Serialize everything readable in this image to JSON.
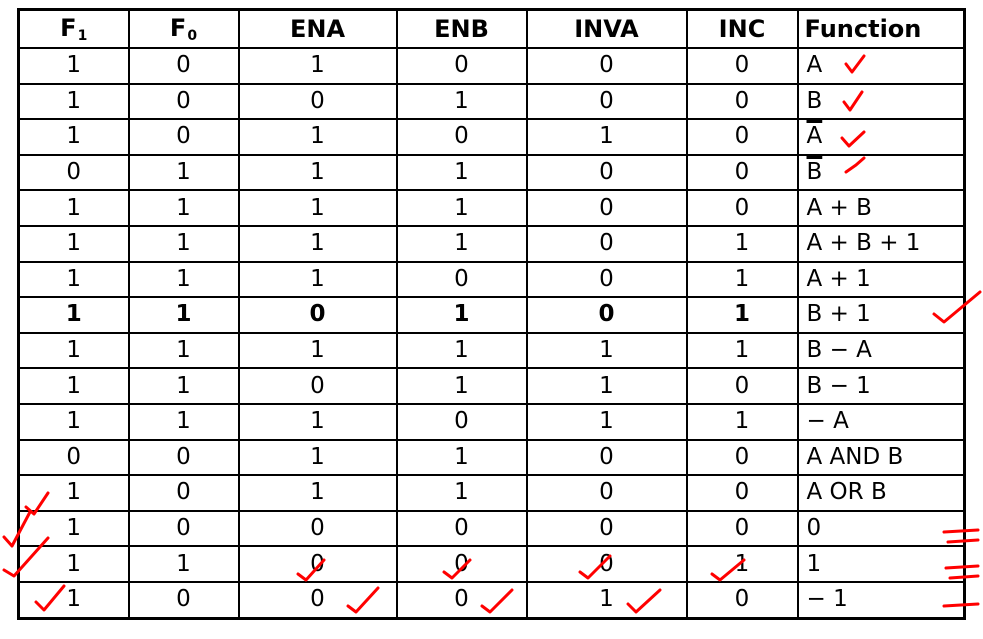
{
  "headers": [
    {
      "main": "F",
      "sub": "1"
    },
    {
      "main": "F",
      "sub": "0"
    },
    {
      "main": "ENA",
      "sub": ""
    },
    {
      "main": "ENB",
      "sub": ""
    },
    {
      "main": "INVA",
      "sub": ""
    },
    {
      "main": "INC",
      "sub": ""
    },
    {
      "main": "Function",
      "sub": ""
    }
  ],
  "rows": [
    {
      "cells": [
        "1",
        "0",
        "1",
        "0",
        "0",
        "0"
      ],
      "function": "A",
      "overline": false
    },
    {
      "cells": [
        "1",
        "0",
        "0",
        "1",
        "0",
        "0"
      ],
      "function": "B",
      "overline": false
    },
    {
      "cells": [
        "1",
        "0",
        "1",
        "0",
        "1",
        "0"
      ],
      "function": "A",
      "overline": true
    },
    {
      "cells": [
        "0",
        "1",
        "1",
        "1",
        "0",
        "0"
      ],
      "function": "B",
      "overline": true
    },
    {
      "cells": [
        "1",
        "1",
        "1",
        "1",
        "0",
        "0"
      ],
      "function": "A + B",
      "overline": false
    },
    {
      "cells": [
        "1",
        "1",
        "1",
        "1",
        "0",
        "1"
      ],
      "function": "A + B + 1",
      "overline": false
    },
    {
      "cells": [
        "1",
        "1",
        "1",
        "0",
        "0",
        "1"
      ],
      "function": "A + 1",
      "overline": false
    },
    {
      "cells": [
        "1",
        "1",
        "0",
        "1",
        "0",
        "1"
      ],
      "function": "B + 1",
      "overline": false,
      "handwritten": true
    },
    {
      "cells": [
        "1",
        "1",
        "1",
        "1",
        "1",
        "1"
      ],
      "function": "B − A",
      "overline": false
    },
    {
      "cells": [
        "1",
        "1",
        "0",
        "1",
        "1",
        "0"
      ],
      "function": "B − 1",
      "overline": false
    },
    {
      "cells": [
        "1",
        "1",
        "1",
        "0",
        "1",
        "1"
      ],
      "function": "− A",
      "overline": false
    },
    {
      "cells": [
        "0",
        "0",
        "1",
        "1",
        "0",
        "0"
      ],
      "function": "A AND B",
      "overline": false
    },
    {
      "cells": [
        "1",
        "0",
        "1",
        "1",
        "0",
        "0"
      ],
      "function": "A OR B",
      "overline": false
    },
    {
      "cells": [
        "1",
        "0",
        "0",
        "0",
        "0",
        "0"
      ],
      "function": "0",
      "overline": false
    },
    {
      "cells": [
        "1",
        "1",
        "0",
        "0",
        "0",
        "1"
      ],
      "function": "1",
      "overline": false
    },
    {
      "cells": [
        "1",
        "0",
        "0",
        "0",
        "1",
        "0"
      ],
      "function": "− 1",
      "overline": false
    }
  ],
  "annotation_color": "#ff0000",
  "icons": [
    "checkmark-icon",
    "tally-mark-icon"
  ]
}
